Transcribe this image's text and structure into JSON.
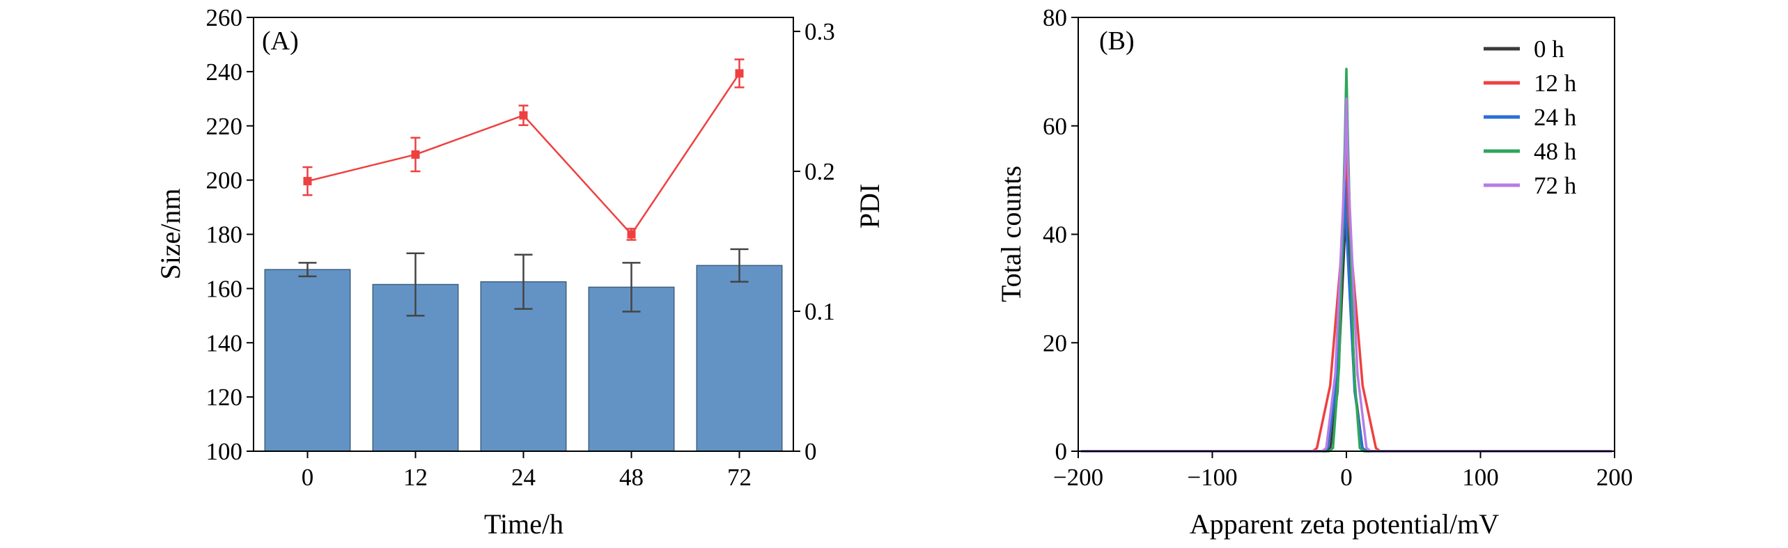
{
  "chart_data": [
    {
      "panel": "(A)",
      "type": "bar+line",
      "xlabel": "Time/h",
      "ylabel": "Size/nm",
      "y2label": "PDI",
      "categories": [
        "0",
        "12",
        "24",
        "48",
        "72"
      ],
      "ylim": [
        100,
        260
      ],
      "yticks": [
        100,
        120,
        140,
        160,
        180,
        200,
        220,
        240,
        260
      ],
      "y2lim": [
        0,
        0.31
      ],
      "y2ticks": [
        0,
        0.1,
        0.2,
        0.3
      ],
      "y2ticklabels": [
        "0",
        "0.1",
        "0.2",
        "0.3"
      ],
      "bar_color": "#6393c4",
      "line_color": "#ee4040",
      "series": [
        {
          "name": "Size/nm",
          "kind": "bar",
          "axis": "left",
          "values": [
            167,
            161.5,
            162.5,
            160.5,
            168.5
          ],
          "errors": [
            2.5,
            11.5,
            10,
            9,
            6
          ]
        },
        {
          "name": "PDI",
          "kind": "line",
          "axis": "right",
          "values": [
            0.193,
            0.212,
            0.24,
            0.155,
            0.27
          ],
          "errors": [
            0.01,
            0.012,
            0.007,
            0.004,
            0.01
          ]
        }
      ]
    },
    {
      "panel": "(B)",
      "type": "line",
      "xlabel": "Apparent zeta potential/mV",
      "ylabel": "Total counts",
      "xlim": [
        -200,
        200
      ],
      "ylim": [
        0,
        80
      ],
      "xticks": [
        -200,
        -100,
        0,
        100,
        200
      ],
      "xticklabels": [
        "−200",
        "−100",
        "0",
        "100",
        "200"
      ],
      "yticks": [
        0,
        20,
        40,
        60,
        80
      ],
      "legend_position": "top-right",
      "series": [
        {
          "name": "0 h",
          "color": "#3a3a3a",
          "center": 0,
          "peak": 50,
          "halfwidth": 12
        },
        {
          "name": "12 h",
          "color": "#ee4040",
          "center": 0,
          "peak": 55,
          "halfwidth": 22
        },
        {
          "name": "24 h",
          "color": "#2a6fd6",
          "center": -1,
          "peak": 50,
          "halfwidth": 13
        },
        {
          "name": "48 h",
          "color": "#2ea65a",
          "center": 0,
          "peak": 70.5,
          "halfwidth": 10
        },
        {
          "name": "72 h",
          "color": "#b57de6",
          "center": 0,
          "peak": 65,
          "halfwidth": 15
        }
      ]
    }
  ]
}
